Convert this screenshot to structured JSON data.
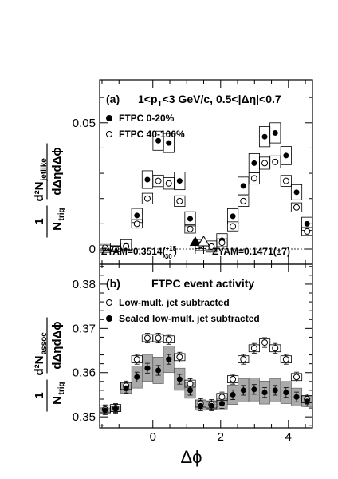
{
  "figure": {
    "x_label": "Δϕ",
    "x_ticks": [
      {
        "v": 0,
        "label": "0"
      },
      {
        "v": 2,
        "label": "2"
      },
      {
        "v": 4,
        "label": "4"
      }
    ],
    "x_range": [
      -1.57,
      4.71
    ]
  },
  "chart_data": [
    {
      "panel": "(a)",
      "type": "scatter",
      "title": "1<p",
      "title_sub": "T",
      "title_tail": "<3 GeV/c, 0.5<|Δη|<0.7",
      "ylabel_numerator": "d²N",
      "ylabel_numerator_sub": "jetlike",
      "ylabel_denominator": "dΔηdΔϕ",
      "ylabel_prefactor_num": "1",
      "ylabel_prefactor_den": "N",
      "ylabel_prefactor_den_sub": "trig",
      "ylim": [
        -0.006,
        0.067
      ],
      "y_ticks": [
        {
          "v": 0,
          "label": "0"
        },
        {
          "v": 0.05,
          "label": "0.05"
        }
      ],
      "grid": false,
      "legend_position": "top-left",
      "x": [
        -1.41,
        -1.1,
        -0.79,
        -0.47,
        -0.16,
        0.16,
        0.47,
        0.79,
        1.1,
        1.41,
        1.73,
        2.04,
        2.36,
        2.67,
        2.99,
        3.3,
        3.61,
        3.93,
        4.24,
        4.55
      ],
      "series": [
        {
          "name": "FTPC 0-20%",
          "marker": "filled-circle",
          "values": [
            0.0005,
            -0.0005,
            0.0015,
            0.0133,
            0.0275,
            0.0429,
            0.042,
            0.027,
            0.012,
            0.0016,
            0.001,
            0.0035,
            0.013,
            0.025,
            0.034,
            0.0445,
            0.046,
            0.037,
            0.0225,
            0.01
          ],
          "box_halfheight": [
            0.0018,
            0.0018,
            0.0022,
            0.0028,
            0.0035,
            0.0038,
            0.0038,
            0.0035,
            0.0028,
            0.0022,
            0.0022,
            0.0026,
            0.003,
            0.0035,
            0.0038,
            0.004,
            0.004,
            0.0036,
            0.003,
            0.0026
          ]
        },
        {
          "name": "FTPC 40-100%",
          "marker": "open-circle",
          "values": [
            0.0005,
            0.0,
            0.001,
            0.01,
            0.02,
            0.027,
            0.026,
            0.019,
            0.008,
            0.0015,
            0.001,
            0.0025,
            0.009,
            0.019,
            0.028,
            0.034,
            0.0345,
            0.027,
            0.0165,
            0.007
          ]
        }
      ],
      "annotations": [
        {
          "text": "ZYAM=0.3514(",
          "sup": "+15",
          "sub": "-30",
          "close": ")"
        },
        {
          "text": "ZYAM=0.1471(±7)"
        }
      ]
    },
    {
      "panel": "(b)",
      "type": "scatter",
      "title": "FTPC event activity",
      "ylabel_numerator": "d²N",
      "ylabel_numerator_sub": "assoc",
      "ylabel_denominator": "dΔηdΔϕ",
      "ylabel_prefactor_num": "1",
      "ylabel_prefactor_den": "N",
      "ylabel_prefactor_den_sub": "trig",
      "ylim": [
        0.3475,
        0.3845
      ],
      "y_ticks": [
        {
          "v": 0.35,
          "label": "0.35"
        },
        {
          "v": 0.36,
          "label": "0.36"
        },
        {
          "v": 0.37,
          "label": "0.37"
        },
        {
          "v": 0.38,
          "label": "0.38"
        }
      ],
      "grid": false,
      "legend_position": "top-left",
      "x": [
        -1.41,
        -1.1,
        -0.79,
        -0.47,
        -0.16,
        0.16,
        0.47,
        0.79,
        1.1,
        1.41,
        1.73,
        2.04,
        2.36,
        2.67,
        2.99,
        3.3,
        3.61,
        3.93,
        4.24,
        4.55
      ],
      "series": [
        {
          "name": "Low-mult. jet subtracted",
          "marker": "open-circle",
          "values": [
            0.3517,
            0.352,
            0.357,
            0.363,
            0.3678,
            0.3678,
            0.3675,
            0.3635,
            0.3575,
            0.353,
            0.3528,
            0.3545,
            0.3585,
            0.363,
            0.3655,
            0.3668,
            0.3655,
            0.363,
            0.359,
            0.354
          ],
          "err": [
            0.001,
            0.001,
            0.0011,
            0.0011,
            0.0011,
            0.0011,
            0.0011,
            0.0011,
            0.0011,
            0.0011,
            0.0011,
            0.0011,
            0.0011,
            0.0011,
            0.0011,
            0.0011,
            0.0011,
            0.0011,
            0.0011,
            0.0011
          ]
        },
        {
          "name": "Scaled low-mult. jet subtracted",
          "marker": "filled-circle",
          "values": [
            0.3515,
            0.3518,
            0.3565,
            0.359,
            0.361,
            0.3605,
            0.363,
            0.3585,
            0.356,
            0.3525,
            0.3525,
            0.353,
            0.355,
            0.356,
            0.3562,
            0.3555,
            0.356,
            0.3555,
            0.3545,
            0.3535
          ],
          "err": [
            0.001,
            0.001,
            0.0011,
            0.0011,
            0.0011,
            0.0011,
            0.0011,
            0.0011,
            0.0011,
            0.0011,
            0.0011,
            0.0011,
            0.0011,
            0.0011,
            0.0011,
            0.0011,
            0.0011,
            0.0011,
            0.0011,
            0.0011
          ],
          "band_halfheight": [
            0.0005,
            0.0006,
            0.0012,
            0.0025,
            0.003,
            0.003,
            0.003,
            0.0025,
            0.0018,
            0.001,
            0.0008,
            0.0012,
            0.0022,
            0.0026,
            0.0026,
            0.0026,
            0.0026,
            0.0025,
            0.002,
            0.0012
          ]
        }
      ]
    }
  ]
}
